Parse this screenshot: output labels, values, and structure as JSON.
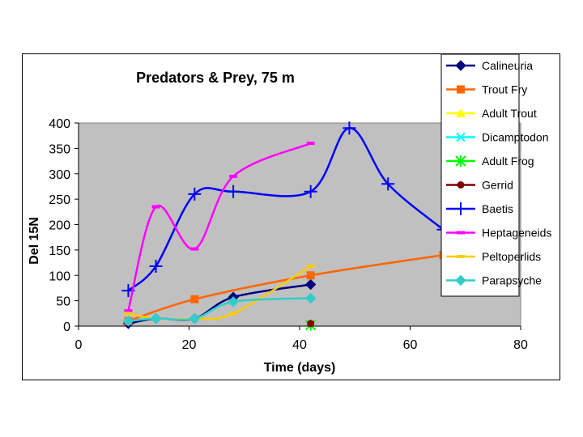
{
  "chart_data": {
    "type": "line",
    "title": "Predators & Prey, 75 m",
    "xlabel": "Time (days)",
    "ylabel": "Del 15N",
    "xlim": [
      0,
      80
    ],
    "ylim": [
      0,
      400
    ],
    "xticks": [
      "0",
      "20",
      "40",
      "60",
      "80"
    ],
    "yticks": [
      "0",
      "50",
      "100",
      "150",
      "200",
      "250",
      "300",
      "350",
      "400"
    ],
    "grid": false,
    "legend_position": "right",
    "plot_background": "#c0c0c0",
    "series": [
      {
        "name": "Calineuria",
        "color": "#000080",
        "marker": "diamond",
        "x": [
          9,
          14,
          21,
          28,
          42
        ],
        "y": [
          5,
          15,
          15,
          57,
          82
        ]
      },
      {
        "name": "Trout Fry",
        "color": "#ff6600",
        "marker": "square",
        "x": [
          9,
          21,
          42,
          66
        ],
        "y": [
          10,
          53,
          100,
          140
        ]
      },
      {
        "name": "Adult Trout",
        "color": "#ffff00",
        "marker": "triangle",
        "x": [],
        "y": []
      },
      {
        "name": "Dicamptodon",
        "color": "#00ffff",
        "marker": "x",
        "x": [],
        "y": []
      },
      {
        "name": "Adult Frog",
        "color": "#00ff00",
        "marker": "star",
        "x": [
          42
        ],
        "y": [
          2
        ]
      },
      {
        "name": "Gerrid",
        "color": "#800000",
        "marker": "circle",
        "x": [
          42
        ],
        "y": [
          5
        ]
      },
      {
        "name": "Baetis",
        "color": "#0000ff",
        "marker": "plus",
        "x": [
          9,
          14,
          21,
          28,
          42,
          49,
          56,
          66
        ],
        "y": [
          70,
          118,
          260,
          265,
          265,
          390,
          280,
          190
        ]
      },
      {
        "name": "Heptageneids",
        "color": "#ff00ff",
        "marker": "dash",
        "x": [
          9,
          14,
          21,
          28,
          42
        ],
        "y": [
          30,
          235,
          152,
          295,
          360
        ]
      },
      {
        "name": "Peltoperlids",
        "color": "#ffcc00",
        "marker": "dash",
        "x": [
          9,
          14,
          21,
          28,
          42
        ],
        "y": [
          25,
          15,
          15,
          25,
          118
        ]
      },
      {
        "name": "Parapsyche",
        "color": "#33cccc",
        "marker": "diamond",
        "x": [
          9,
          14,
          21,
          28,
          42
        ],
        "y": [
          10,
          15,
          15,
          48,
          55
        ]
      }
    ]
  }
}
